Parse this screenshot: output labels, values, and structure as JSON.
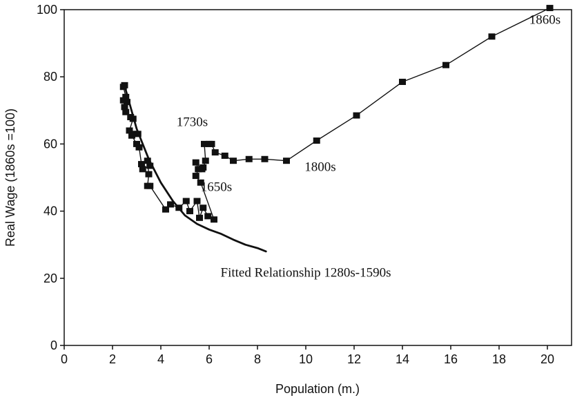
{
  "chart_data": {
    "type": "scatter",
    "xlabel": "Population (m.)",
    "ylabel": "Real Wage (1860s =100)",
    "xlim": [
      0,
      21
    ],
    "ylim": [
      0,
      100
    ],
    "xticks": [
      0,
      2,
      4,
      6,
      8,
      10,
      12,
      14,
      16,
      18,
      20
    ],
    "yticks": [
      0,
      20,
      40,
      60,
      80,
      100
    ],
    "grid": false,
    "legend": "none",
    "colors": {
      "line": "#111111",
      "marker": "#111111",
      "background": "#ffffff"
    },
    "series": [
      {
        "kind": "observed",
        "points": [
          [
            2.5,
            77.5
          ],
          [
            2.45,
            77.0
          ],
          [
            2.55,
            74.0
          ],
          [
            2.45,
            73.0
          ],
          [
            2.6,
            72.5
          ],
          [
            2.5,
            71.0
          ],
          [
            2.55,
            69.5
          ],
          [
            2.75,
            68.0
          ],
          [
            2.85,
            67.5
          ],
          [
            2.7,
            64.0
          ],
          [
            2.9,
            63.0
          ],
          [
            3.05,
            63.0
          ],
          [
            2.8,
            62.5
          ],
          [
            3.0,
            60.0
          ],
          [
            3.1,
            59.0
          ],
          [
            3.2,
            54.0
          ],
          [
            3.25,
            52.5
          ],
          [
            3.55,
            53.5
          ],
          [
            3.45,
            55.0
          ],
          [
            3.5,
            51.0
          ],
          [
            3.45,
            47.5
          ],
          [
            3.55,
            47.5
          ],
          [
            4.2,
            40.5
          ],
          [
            4.4,
            42.0
          ],
          [
            4.75,
            41.0
          ],
          [
            5.05,
            43.0
          ],
          [
            5.2,
            40.0
          ],
          [
            5.5,
            43.0
          ],
          [
            5.6,
            38.0
          ],
          [
            5.75,
            41.0
          ],
          [
            5.95,
            38.5
          ],
          [
            6.2,
            37.5
          ],
          [
            5.65,
            48.5
          ],
          [
            5.45,
            50.5
          ],
          [
            5.55,
            52.5
          ],
          [
            5.45,
            54.5
          ],
          [
            5.7,
            52.5
          ],
          [
            5.75,
            53.0
          ],
          [
            5.85,
            55.0
          ],
          [
            5.8,
            60.0
          ],
          [
            6.0,
            60.0
          ],
          [
            6.1,
            60.0
          ],
          [
            6.25,
            57.5
          ],
          [
            6.65,
            56.5
          ],
          [
            7.0,
            55.0
          ],
          [
            7.65,
            55.5
          ],
          [
            8.3,
            55.5
          ],
          [
            9.2,
            55.0
          ],
          [
            10.45,
            61.0
          ],
          [
            12.1,
            68.5
          ],
          [
            14.0,
            78.5
          ],
          [
            15.8,
            83.5
          ],
          [
            17.7,
            92.0
          ],
          [
            20.1,
            100.5
          ]
        ]
      },
      {
        "kind": "fitted",
        "points": [
          [
            2.55,
            76.0
          ],
          [
            3.0,
            64.5
          ],
          [
            3.5,
            55.5
          ],
          [
            4.0,
            48.5
          ],
          [
            4.5,
            43.0
          ],
          [
            5.0,
            38.7
          ],
          [
            5.5,
            36.2
          ],
          [
            6.0,
            34.5
          ],
          [
            6.5,
            33.2
          ],
          [
            7.0,
            31.5
          ],
          [
            7.5,
            30.0
          ],
          [
            8.0,
            29.0
          ],
          [
            8.35,
            28.0
          ]
        ]
      }
    ],
    "annotations": [
      {
        "text": "1730s",
        "x": 5.3,
        "y": 65.3
      },
      {
        "text": "1650s",
        "x": 6.3,
        "y": 46.0
      },
      {
        "text": "1800s",
        "x": 10.6,
        "y": 52.0
      },
      {
        "text": "1860s",
        "x": 19.9,
        "y": 95.8
      },
      {
        "text": "Fitted Relationship 1280s-1590s",
        "x": 10.0,
        "y": 20.5
      }
    ]
  }
}
